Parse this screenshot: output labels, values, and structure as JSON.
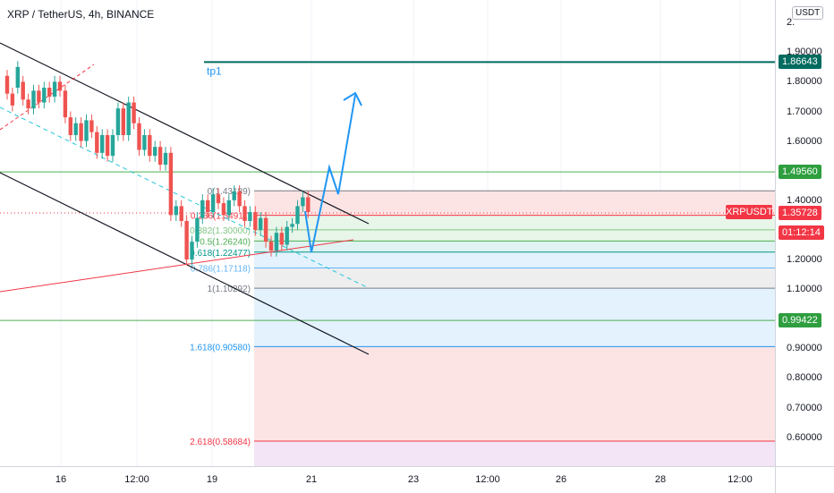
{
  "header": {
    "title": "XRP / TetherUS, 4h, BINANCE"
  },
  "price_axis": {
    "unit_button": "USDT",
    "ticks": [
      {
        "label": "2.",
        "price": 2.0
      },
      {
        "label": "1.90000",
        "price": 1.9
      },
      {
        "label": "1.80000",
        "price": 1.8
      },
      {
        "label": "1.70000",
        "price": 1.7
      },
      {
        "label": "1.60000",
        "price": 1.6
      },
      {
        "label": "1.40000",
        "price": 1.4
      },
      {
        "label": "1.20000",
        "price": 1.2
      },
      {
        "label": "1.10000",
        "price": 1.1
      },
      {
        "label": "0.90000",
        "price": 0.9
      },
      {
        "label": "0.80000",
        "price": 0.8
      },
      {
        "label": "0.70000",
        "price": 0.7
      },
      {
        "label": "0.60000",
        "price": 0.6
      }
    ],
    "labels": [
      {
        "text": "1.86643",
        "price": 1.86643,
        "color": "#006b5e"
      },
      {
        "text": "1.49560",
        "price": 1.4956,
        "color": "#2e9e3f"
      },
      {
        "text": "1.35728",
        "price": 1.35728,
        "color": "#f23645"
      },
      {
        "text": "01:12:14",
        "price": 1.2918,
        "color": "#f23645"
      },
      {
        "text": "0.99422",
        "price": 0.99422,
        "color": "#2e9e3f"
      }
    ]
  },
  "symbol_tag": "XRPUSDT",
  "time_axis": {
    "ticks": [
      "16",
      "12:00",
      "19",
      "12:00",
      "21",
      "23",
      "12:00",
      "26",
      "28",
      "12:00"
    ]
  },
  "drawings": {
    "tp1_label": "tp1",
    "tp1_price": 1.86643,
    "fib_levels": [
      {
        "label": "0(1.43189)",
        "price": 1.43189,
        "color": "#787b86"
      },
      {
        "label": "0.236(1.34911)",
        "price": 1.34911,
        "color": "#f23645"
      },
      {
        "label": "0.382(1.30000)",
        "price": 1.3,
        "color": "#81c784"
      },
      {
        "label": "0.5(1.26240)",
        "price": 1.2624,
        "color": "#4caf50"
      },
      {
        "label": "0.618(1.22477)",
        "price": 1.22477,
        "color": "#009688"
      },
      {
        "label": "0.786(1.17118)",
        "price": 1.17118,
        "color": "#64b5f6"
      },
      {
        "label": "1(1.10292)",
        "price": 1.10292,
        "color": "#787b86"
      },
      {
        "label": "1.618(0.90580)",
        "price": 0.9058,
        "color": "#2196f3"
      },
      {
        "label": "2.618(0.58684)",
        "price": 0.58684,
        "color": "#f23645"
      }
    ],
    "horizontal_lines": [
      {
        "price": 1.4956,
        "color": "#4caf50"
      },
      {
        "price": 0.99422,
        "color": "#4caf50"
      }
    ]
  },
  "candles": [
    [
      1.82,
      1.76
    ],
    [
      1.76,
      1.72
    ],
    [
      1.78,
      1.85
    ],
    [
      1.8,
      1.74
    ],
    [
      1.74,
      1.71
    ],
    [
      1.71,
      1.77
    ],
    [
      1.77,
      1.73
    ],
    [
      1.73,
      1.78
    ],
    [
      1.78,
      1.75
    ],
    [
      1.75,
      1.8
    ],
    [
      1.8,
      1.77
    ],
    [
      1.77,
      1.68
    ],
    [
      1.68,
      1.62
    ],
    [
      1.62,
      1.66
    ],
    [
      1.66,
      1.6
    ],
    [
      1.6,
      1.67
    ],
    [
      1.67,
      1.63
    ],
    [
      1.63,
      1.56
    ],
    [
      1.56,
      1.62
    ],
    [
      1.62,
      1.55
    ],
    [
      1.55,
      1.62
    ],
    [
      1.62,
      1.71
    ],
    [
      1.71,
      1.62
    ],
    [
      1.62,
      1.73
    ],
    [
      1.73,
      1.66
    ],
    [
      1.66,
      1.57
    ],
    [
      1.57,
      1.62
    ],
    [
      1.62,
      1.55
    ],
    [
      1.55,
      1.58
    ],
    [
      1.58,
      1.52
    ],
    [
      1.52,
      1.56
    ],
    [
      1.56,
      1.35
    ],
    [
      1.35,
      1.38
    ],
    [
      1.38,
      1.33
    ],
    [
      1.33,
      1.2
    ],
    [
      1.2,
      1.26
    ],
    [
      1.26,
      1.34
    ],
    [
      1.34,
      1.4
    ],
    [
      1.4,
      1.36
    ],
    [
      1.36,
      1.42
    ],
    [
      1.42,
      1.39
    ],
    [
      1.39,
      1.35
    ],
    [
      1.35,
      1.4
    ],
    [
      1.4,
      1.43
    ],
    [
      1.43,
      1.38
    ],
    [
      1.38,
      1.33
    ],
    [
      1.33,
      1.36
    ],
    [
      1.36,
      1.3
    ],
    [
      1.3,
      1.34
    ],
    [
      1.34,
      1.26
    ],
    [
      1.26,
      1.23
    ],
    [
      1.23,
      1.29
    ],
    [
      1.29,
      1.25
    ],
    [
      1.25,
      1.31
    ],
    [
      1.31,
      1.32
    ],
    [
      1.32,
      1.38
    ],
    [
      1.38,
      1.41
    ],
    [
      1.41,
      1.36
    ]
  ]
}
